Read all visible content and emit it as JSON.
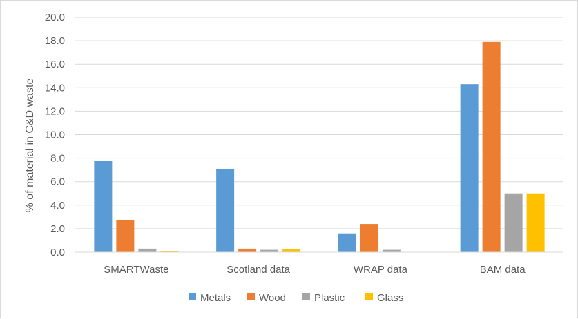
{
  "chart_data": {
    "type": "bar",
    "title": "",
    "xlabel": "",
    "ylabel": "% of material in C&D waste",
    "ylim": [
      0,
      20
    ],
    "yticks": [
      "0.0",
      "2.0",
      "4.0",
      "6.0",
      "8.0",
      "10.0",
      "12.0",
      "14.0",
      "16.0",
      "18.0",
      "20.0"
    ],
    "grid": true,
    "legend_position": "bottom",
    "categories": [
      "SMARTWaste",
      "Scotland data",
      "WRAP data",
      "BAM data"
    ],
    "series": [
      {
        "name": "Metals",
        "color": "#5b9bd5",
        "values": [
          7.8,
          7.1,
          1.6,
          14.3
        ]
      },
      {
        "name": "Wood",
        "color": "#ed7d31",
        "values": [
          2.7,
          0.3,
          2.4,
          17.9
        ]
      },
      {
        "name": "Plastic",
        "color": "#a5a5a5",
        "values": [
          0.3,
          0.2,
          0.2,
          5.0
        ]
      },
      {
        "name": "Glass",
        "color": "#ffc000",
        "values": [
          0.1,
          0.25,
          0.0,
          5.0
        ]
      }
    ]
  }
}
